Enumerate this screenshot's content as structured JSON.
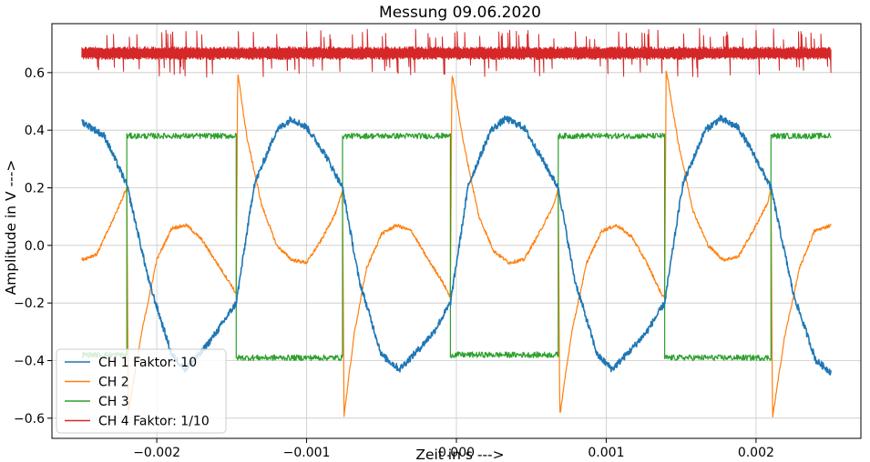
{
  "chart_data": {
    "type": "line",
    "title": "Messung 09.06.2020",
    "xlabel": "Zeit in s --->",
    "ylabel": "Amplitude in V --->",
    "xlim": [
      -0.0027,
      0.0027
    ],
    "ylim": [
      -0.67,
      0.77
    ],
    "xticks": [
      -0.002,
      -0.001,
      0.0,
      0.001,
      0.002
    ],
    "xtick_labels": [
      "−0.002",
      "−0.001",
      "0.000",
      "0.001",
      "0.002"
    ],
    "yticks": [
      -0.6,
      -0.4,
      -0.2,
      0.0,
      0.2,
      0.4,
      0.6
    ],
    "ytick_labels": [
      "−0.6",
      "−0.4",
      "−0.2",
      "0.0",
      "0.2",
      "0.4",
      "0.6"
    ],
    "grid": true,
    "legend_position": "lower-left",
    "x_range": [
      -0.0025,
      0.0025
    ],
    "period": 0.00143,
    "series": [
      {
        "name": "CH 1 Faktor: 10",
        "color": "#1f77b4",
        "points": [
          [
            -0.0025,
            0.43
          ],
          [
            -0.00235,
            0.38
          ],
          [
            -0.0022,
            0.21
          ],
          [
            -0.00205,
            -0.13
          ],
          [
            -0.0019,
            -0.38
          ],
          [
            -0.00181,
            -0.43
          ],
          [
            -0.0017,
            -0.37
          ],
          [
            -0.0016,
            -0.3
          ],
          [
            -0.00147,
            -0.2
          ],
          [
            -0.00135,
            0.21
          ],
          [
            -0.0012,
            0.4
          ],
          [
            -0.0011,
            0.44
          ],
          [
            -0.001,
            0.41
          ],
          [
            -0.00088,
            0.32
          ],
          [
            -0.00076,
            0.2
          ],
          [
            -0.00065,
            -0.12
          ],
          [
            -0.0005,
            -0.38
          ],
          [
            -0.00038,
            -0.43
          ],
          [
            -0.00025,
            -0.36
          ],
          [
            -0.00015,
            -0.3
          ],
          [
            -4e-05,
            -0.2
          ],
          [
            8e-05,
            0.21
          ],
          [
            0.00023,
            0.4
          ],
          [
            0.00033,
            0.44
          ],
          [
            0.00045,
            0.41
          ],
          [
            0.00055,
            0.32
          ],
          [
            0.00068,
            0.2
          ],
          [
            0.00079,
            -0.12
          ],
          [
            0.00094,
            -0.38
          ],
          [
            0.00104,
            -0.43
          ],
          [
            0.00117,
            -0.36
          ],
          [
            0.00127,
            -0.3
          ],
          [
            0.00139,
            -0.2
          ],
          [
            0.00151,
            0.21
          ],
          [
            0.00166,
            0.4
          ],
          [
            0.00176,
            0.44
          ],
          [
            0.00188,
            0.41
          ],
          [
            0.00198,
            0.32
          ],
          [
            0.0021,
            0.2
          ],
          [
            0.00225,
            -0.17
          ],
          [
            0.0024,
            -0.4
          ],
          [
            0.0025,
            -0.44
          ]
        ]
      },
      {
        "name": "CH 2",
        "color": "#ff7f0e",
        "points": [
          [
            -0.0025,
            -0.05
          ],
          [
            -0.0024,
            -0.03
          ],
          [
            -0.0023,
            0.08
          ],
          [
            -0.0022,
            0.2
          ],
          [
            -0.00219,
            -0.58
          ],
          [
            -0.0021,
            -0.3
          ],
          [
            -0.002,
            -0.05
          ],
          [
            -0.0019,
            0.06
          ],
          [
            -0.0018,
            0.07
          ],
          [
            -0.0017,
            0.02
          ],
          [
            -0.0016,
            -0.06
          ],
          [
            -0.0015,
            -0.14
          ],
          [
            -0.00147,
            -0.17
          ],
          [
            -0.00146,
            0.6
          ],
          [
            -0.0014,
            0.38
          ],
          [
            -0.0013,
            0.14
          ],
          [
            -0.0012,
            0.0
          ],
          [
            -0.0011,
            -0.05
          ],
          [
            -0.001,
            -0.06
          ],
          [
            -0.0009,
            0.02
          ],
          [
            -0.0008,
            0.12
          ],
          [
            -0.00076,
            0.19
          ],
          [
            -0.00075,
            -0.59
          ],
          [
            -0.00068,
            -0.3
          ],
          [
            -0.0006,
            -0.08
          ],
          [
            -0.0005,
            0.04
          ],
          [
            -0.0004,
            0.07
          ],
          [
            -0.0003,
            0.05
          ],
          [
            -0.0002,
            -0.04
          ],
          [
            -0.0001,
            -0.12
          ],
          [
            -4e-05,
            -0.18
          ],
          [
            -3e-05,
            0.6
          ],
          [
            5e-05,
            0.35
          ],
          [
            0.00015,
            0.1
          ],
          [
            0.00025,
            -0.02
          ],
          [
            0.00035,
            -0.06
          ],
          [
            0.00045,
            -0.05
          ],
          [
            0.00055,
            0.04
          ],
          [
            0.00065,
            0.14
          ],
          [
            0.00068,
            0.2
          ],
          [
            0.00069,
            -0.59
          ],
          [
            0.00077,
            -0.3
          ],
          [
            0.00087,
            -0.06
          ],
          [
            0.00097,
            0.05
          ],
          [
            0.00107,
            0.07
          ],
          [
            0.00117,
            0.03
          ],
          [
            0.00127,
            -0.06
          ],
          [
            0.00137,
            -0.17
          ],
          [
            0.00139,
            -0.18
          ],
          [
            0.0014,
            0.61
          ],
          [
            0.00148,
            0.36
          ],
          [
            0.00158,
            0.12
          ],
          [
            0.00168,
            0.0
          ],
          [
            0.00178,
            -0.05
          ],
          [
            0.00188,
            -0.04
          ],
          [
            0.00198,
            0.05
          ],
          [
            0.00208,
            0.15
          ],
          [
            0.0021,
            0.2
          ],
          [
            0.00211,
            -0.6
          ],
          [
            0.00219,
            -0.32
          ],
          [
            0.00229,
            -0.08
          ],
          [
            0.00239,
            0.05
          ],
          [
            0.0025,
            0.07
          ]
        ]
      },
      {
        "name": "CH 3",
        "color": "#2ca02c",
        "points": [
          [
            -0.0025,
            -0.38
          ],
          [
            -0.0022,
            -0.38
          ],
          [
            -0.0022,
            0.38
          ],
          [
            -0.00147,
            0.38
          ],
          [
            -0.00147,
            -0.39
          ],
          [
            -0.00076,
            -0.39
          ],
          [
            -0.00076,
            0.38
          ],
          [
            -4e-05,
            0.38
          ],
          [
            -4e-05,
            -0.38
          ],
          [
            0.00068,
            -0.38
          ],
          [
            0.00068,
            0.38
          ],
          [
            0.00139,
            0.38
          ],
          [
            0.00139,
            -0.39
          ],
          [
            0.0021,
            -0.39
          ],
          [
            0.0021,
            0.38
          ],
          [
            0.0025,
            0.38
          ]
        ]
      },
      {
        "name": "CH 4 Faktor: 1/10",
        "color": "#d62728",
        "points": [
          [
            -0.0025,
            0.67
          ],
          [
            0.0025,
            0.67
          ]
        ],
        "band": [
          0.645,
          0.69
        ]
      }
    ]
  }
}
